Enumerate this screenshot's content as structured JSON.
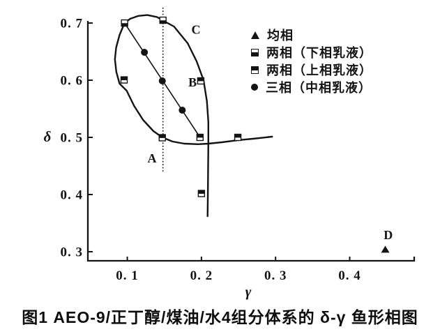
{
  "figure": {
    "caption": "图1  AEO-9/正丁醇/煤油/水4组分体系的 δ-γ 鱼形相图"
  },
  "chart_data": {
    "type": "scatter",
    "title": "",
    "xlabel": "γ",
    "ylabel": "δ",
    "xlim": [
      0.0468,
      0.487
    ],
    "ylim": [
      0.2841,
      0.7037
    ],
    "xticks": [
      0.1,
      0.2,
      0.3,
      0.4
    ],
    "xtick_labels": [
      "0. 1",
      "0. 2",
      "0. 3",
      "0. 4"
    ],
    "yticks": [
      0.3,
      0.4,
      0.5,
      0.6,
      0.7
    ],
    "ytick_labels": [
      "0. 3",
      "0. 4",
      "0. 5",
      "0. 6",
      "0. 7"
    ],
    "grid": false,
    "legend_position": "upper-right",
    "series": [
      {
        "name": "均相",
        "marker": "triangle-filled",
        "points": [
          [
            0.448,
            0.3037
          ]
        ]
      },
      {
        "name": "两相（下相乳液）",
        "marker": "square-bottom-filled",
        "points": [
          [
            0.0963,
            0.7
          ],
          [
            0.1481,
            0.7049
          ]
        ]
      },
      {
        "name": "两相（上相乳液）",
        "marker": "square-top-filled",
        "points": [
          [
            0.0957,
            0.6005
          ],
          [
            0.1991,
            0.5988
          ],
          [
            0.1472,
            0.4994
          ],
          [
            0.1981,
            0.5
          ],
          [
            0.2491,
            0.5
          ],
          [
            0.2,
            0.4018
          ]
        ]
      },
      {
        "name": "三相（中相乳液）",
        "marker": "circle-filled",
        "points": [
          [
            0.1231,
            0.6488
          ],
          [
            0.1472,
            0.5988
          ],
          [
            0.1741,
            0.5476
          ]
        ]
      }
    ],
    "curves": {
      "fish_boundary_upper_and_tail_down": [
        [
          0.0963,
          0.7
        ],
        [
          0.104,
          0.7075
        ],
        [
          0.115,
          0.7125
        ],
        [
          0.127,
          0.714
        ],
        [
          0.14,
          0.7105
        ],
        [
          0.149,
          0.7037
        ],
        [
          0.163,
          0.694
        ],
        [
          0.1815,
          0.6646
        ],
        [
          0.1935,
          0.633
        ],
        [
          0.2028,
          0.6
        ],
        [
          0.2074,
          0.5634
        ],
        [
          0.2093,
          0.5268
        ],
        [
          0.2093,
          0.49
        ],
        [
          0.209,
          0.44
        ],
        [
          0.2087,
          0.4
        ],
        [
          0.2083,
          0.362
        ]
      ],
      "fish_boundary_lower_and_tail_right": [
        [
          0.0963,
          0.7
        ],
        [
          0.0896,
          0.6793
        ],
        [
          0.085,
          0.6573
        ],
        [
          0.0833,
          0.6366
        ],
        [
          0.0852,
          0.6146
        ],
        [
          0.0896,
          0.5939
        ],
        [
          0.0991,
          0.5817
        ],
        [
          0.1093,
          0.5549
        ],
        [
          0.1213,
          0.5305
        ],
        [
          0.1352,
          0.511
        ],
        [
          0.1472,
          0.5
        ],
        [
          0.1611,
          0.4927
        ],
        [
          0.1769,
          0.489
        ],
        [
          0.1954,
          0.488
        ],
        [
          0.2093,
          0.489
        ],
        [
          0.2278,
          0.4915
        ],
        [
          0.2491,
          0.495
        ],
        [
          0.2694,
          0.4976
        ],
        [
          0.2954,
          0.5012
        ]
      ],
      "three_phase_dilution_line": [
        [
          0.0963,
          0.7
        ],
        [
          0.1981,
          0.5
        ]
      ],
      "reference_dashed_vertical": {
        "x": 0.1481,
        "y_from": 0.727,
        "y_to": 0.4385
      }
    },
    "annotations": [
      {
        "label": "A",
        "x": 0.1333,
        "y": 0.456
      },
      {
        "label": "B",
        "x": 0.188,
        "y": 0.589
      },
      {
        "label": "C",
        "x": 0.1926,
        "y": 0.681
      },
      {
        "label": "D",
        "x": 0.452,
        "y": 0.322
      }
    ]
  }
}
